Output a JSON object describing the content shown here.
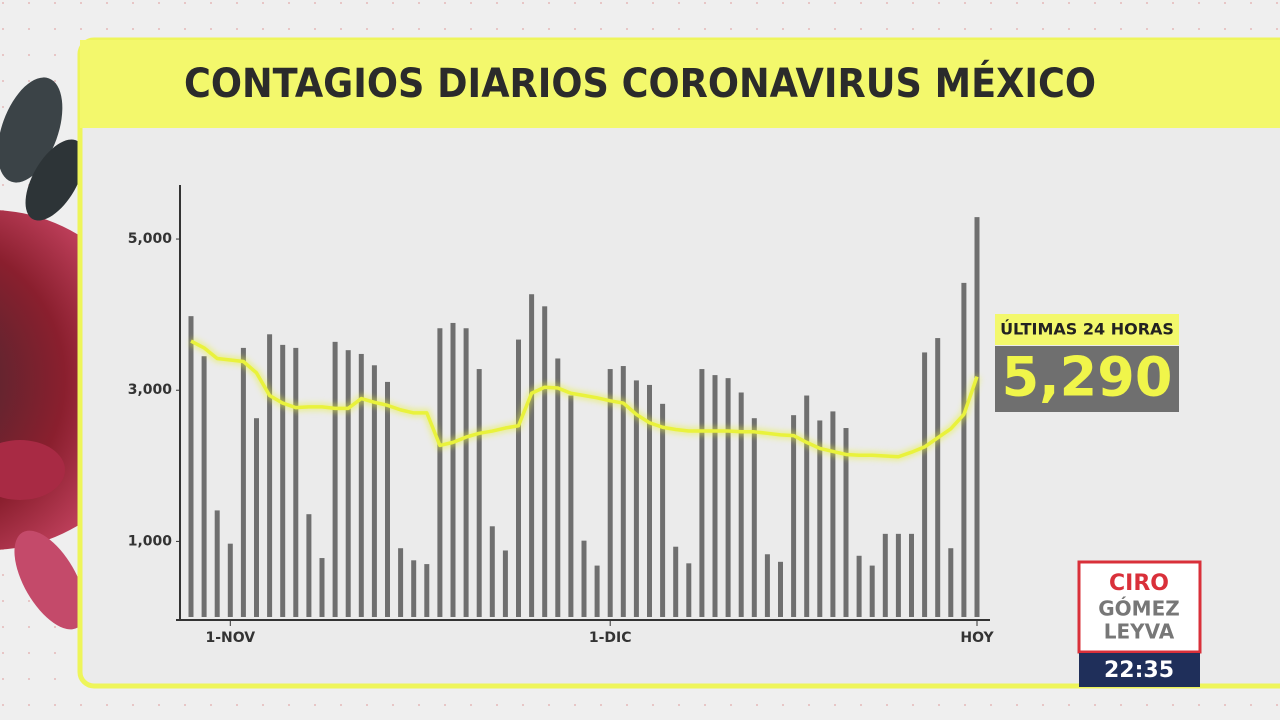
{
  "chart_data": {
    "type": "bar",
    "title": "CONTAGIOS DIARIOS CORONAVIRUS MÉXICO",
    "categories": [
      null,
      null,
      null,
      "1-NOV",
      null,
      null,
      null,
      null,
      null,
      null,
      null,
      null,
      null,
      null,
      null,
      null,
      null,
      null,
      null,
      null,
      null,
      null,
      null,
      null,
      null,
      null,
      null,
      null,
      null,
      null,
      null,
      null,
      "1-DIC",
      null,
      null,
      null,
      null,
      null,
      null,
      null,
      null,
      null,
      null,
      null,
      null,
      null,
      null,
      null,
      null,
      null,
      null,
      null,
      null,
      null,
      null,
      null,
      null,
      null,
      null,
      null,
      "HOY"
    ],
    "values": [
      3980,
      3450,
      1410,
      970,
      3560,
      2630,
      3740,
      3600,
      3560,
      1360,
      780,
      3640,
      3530,
      3480,
      3330,
      3110,
      910,
      750,
      700,
      3820,
      3890,
      3820,
      3280,
      1200,
      880,
      3670,
      4270,
      4110,
      3420,
      2930,
      1010,
      680,
      3280,
      3320,
      3130,
      3070,
      2820,
      930,
      710,
      3280,
      3200,
      3160,
      2970,
      2630,
      830,
      730,
      2670,
      2930,
      2600,
      2720,
      2500,
      810,
      680,
      1100,
      1100,
      1100,
      3500,
      3690,
      910,
      4420,
      5290
    ],
    "color": "#6f6f6f",
    "line_values": [
      3650,
      3560,
      3420,
      3400,
      3380,
      3230,
      2930,
      2830,
      2770,
      2780,
      2780,
      2760,
      2760,
      2890,
      2840,
      2800,
      2740,
      2700,
      2700,
      2270,
      2310,
      2380,
      2430,
      2460,
      2500,
      2530,
      2960,
      3040,
      3030,
      2960,
      2930,
      2900,
      2860,
      2830,
      2680,
      2570,
      2510,
      2480,
      2460,
      2460,
      2460,
      2460,
      2450,
      2450,
      2430,
      2410,
      2400,
      2310,
      2230,
      2190,
      2150,
      2140,
      2140,
      2130,
      2120,
      2180,
      2250,
      2370,
      2490,
      2680,
      3180
    ],
    "line_color": "#e9f23c",
    "ylim": [
      0,
      5715
    ],
    "yticks": [
      {
        "value": 1000,
        "label": "1,000"
      },
      {
        "value": 3000,
        "label": "3,000"
      },
      {
        "value": 5000,
        "label": "5,000"
      }
    ],
    "grid": false
  },
  "callout": {
    "label": "ÚLTIMAS 24 HORAS",
    "value": "5,290"
  },
  "logo": {
    "line1": "CIRO",
    "line2": "GÓMEZ",
    "line3": "LEYVA"
  },
  "clock": "22:35"
}
